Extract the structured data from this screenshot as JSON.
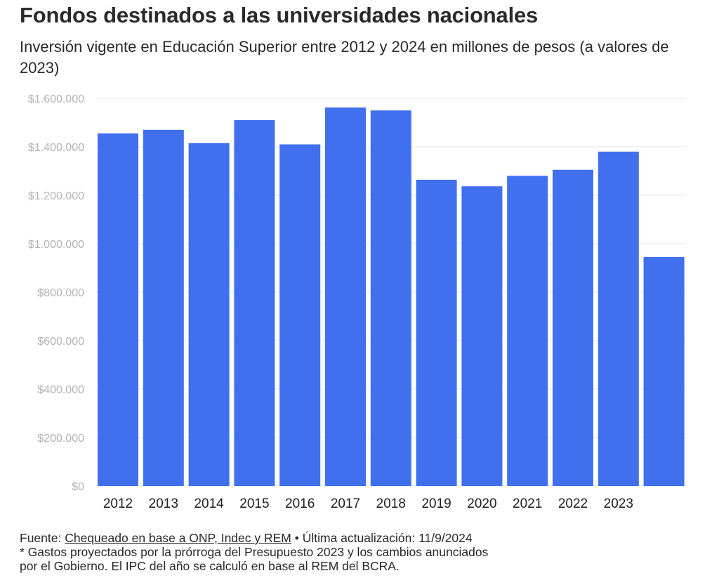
{
  "header": {
    "title": "Fondos destinados a las universidades nacionales",
    "subtitle": "Inversión vigente en Educación Superior entre 2012 y 2024 en millones de pesos (a valores de 2023)"
  },
  "footer": {
    "source_prefix": "Fuente: ",
    "source_link": "Chequeado en base a ONP, Indec y REM",
    "updated": " • Última actualización: 11/9/2024",
    "note_line1": "* Gastos proyectados por la prórroga del Presupuesto 2023 y los cambios anunciados",
    "note_line2": "por el Gobierno. El IPC del año se calculó en base al REM del BCRA."
  },
  "colors": {
    "bar": "#4070ee",
    "grid": "#e6e6e6",
    "axis_label": "#b3b3b3",
    "text": "#2a2a2a"
  },
  "chart_data": {
    "type": "bar",
    "categories": [
      "2012",
      "2013",
      "2014",
      "2015",
      "2016",
      "2017",
      "2018",
      "2019",
      "2020",
      "2021",
      "2022",
      "2023",
      ""
    ],
    "values": [
      1455000,
      1470000,
      1415000,
      1510000,
      1410000,
      1562000,
      1550000,
      1264000,
      1237000,
      1280000,
      1305000,
      1380000,
      945000
    ],
    "ylim": [
      0,
      1600000
    ],
    "yticks": [
      0,
      200000,
      400000,
      600000,
      800000,
      1000000,
      1200000,
      1400000,
      1600000
    ],
    "ytick_labels": [
      "$0",
      "$200.000",
      "$400.000",
      "$600.000",
      "$800.000",
      "$1.000.000",
      "$1.200.000",
      "$1.400.000",
      "$1.600.000"
    ],
    "grid": true,
    "legend": "none"
  }
}
